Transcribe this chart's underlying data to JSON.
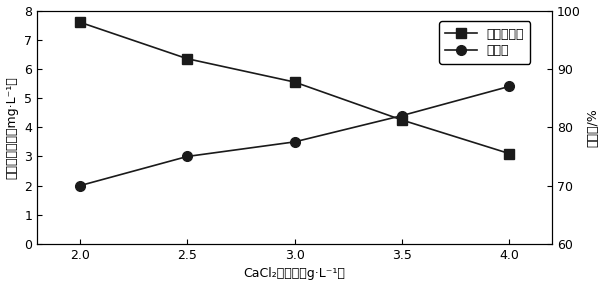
{
  "x": [
    2.0,
    2.5,
    3.0,
    3.5,
    4.0
  ],
  "boron_conc": [
    7.6,
    6.35,
    5.55,
    4.25,
    3.1
  ],
  "removal_rate_pct": [
    70,
    75,
    77.5,
    82,
    87
  ],
  "boron_color": "#1a1a1a",
  "removal_color": "#1a1a1a",
  "boron_marker": "s",
  "removal_marker": "o",
  "xlabel": "CaCl₂浓度／（g·L⁻¹）",
  "ylabel_left": "出水硷浓度／（mg·L⁻¹）",
  "ylabel_right": "去除率/%",
  "legend_boron": "出水硷浓度",
  "legend_removal": "去除率",
  "xlim": [
    1.8,
    4.2
  ],
  "ylim_left": [
    0,
    8
  ],
  "ylim_right": [
    60,
    100
  ],
  "yticks_left": [
    0,
    1,
    2,
    3,
    4,
    5,
    6,
    7,
    8
  ],
  "yticks_right": [
    60,
    70,
    80,
    90,
    100
  ],
  "xticks": [
    2.0,
    2.5,
    3.0,
    3.5,
    4.0
  ],
  "marker_size": 7,
  "line_width": 1.2,
  "font_size": 9,
  "legend_font_size": 9
}
